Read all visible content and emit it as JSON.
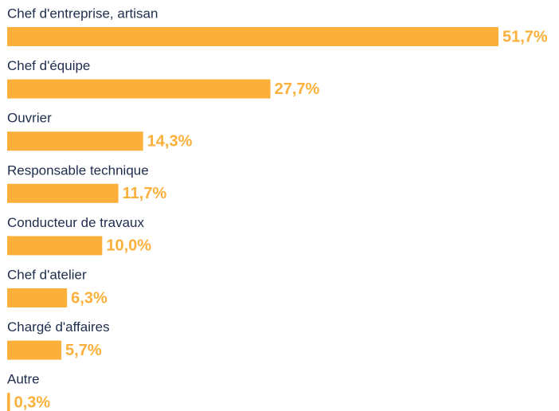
{
  "chart_data": {
    "type": "bar",
    "orientation": "horizontal",
    "categories": [
      "Chef d'entreprise, artisan",
      "Chef d'équipe",
      "Ouvrier",
      "Responsable technique",
      "Conducteur de travaux",
      "Chef d'atelier",
      "Chargé d'affaires",
      "Autre"
    ],
    "values": [
      51.7,
      27.7,
      14.3,
      11.7,
      10.0,
      6.3,
      5.7,
      0.3
    ],
    "value_labels": [
      "51,7%",
      "27,7%",
      "14,3%",
      "11,7%",
      "10,0%",
      "6,3%",
      "5,7%",
      "0,3%"
    ],
    "color": "#fbb03b"
  }
}
